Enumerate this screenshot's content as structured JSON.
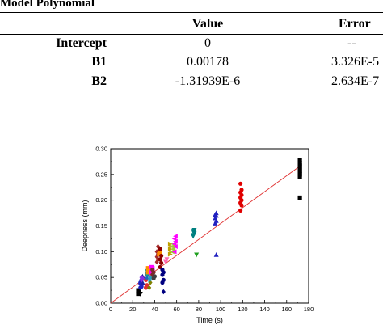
{
  "table": {
    "title": "Model Polynomial",
    "headers": {
      "value": "Value",
      "error": "Error"
    },
    "rows": [
      {
        "label": "Intercept",
        "value": "0",
        "error": "--"
      },
      {
        "label": "B1",
        "value": "0.00178",
        "error": "3.326E-5"
      },
      {
        "label": "B2",
        "value": "-1.31939E-6",
        "error": "2.634E-7"
      }
    ]
  },
  "chart_data": {
    "type": "scatter",
    "xlabel": "Time (s)",
    "ylabel": "Deepness (mm)",
    "xlim": [
      0,
      180
    ],
    "ylim": [
      0,
      0.3
    ],
    "xticks": [
      0,
      20,
      40,
      60,
      80,
      100,
      120,
      140,
      160,
      180
    ],
    "yticks": [
      0.0,
      0.05,
      0.1,
      0.15,
      0.2,
      0.25,
      0.3
    ],
    "ytick_labels": [
      "0.00",
      "0.05",
      "0.10",
      "0.15",
      "0.20",
      "0.25",
      "0.30"
    ],
    "fit_line": {
      "color": "#e03030",
      "x": [
        0,
        172
      ],
      "y": [
        0,
        0.266
      ]
    },
    "series": [
      {
        "marker": "square",
        "color": "#000000",
        "x": [
          25,
          26,
          25
        ],
        "y": [
          0.018,
          0.022,
          0.025
        ]
      },
      {
        "marker": "circle",
        "color": "#2020c0",
        "x": [
          27,
          28,
          27,
          28,
          27,
          28
        ],
        "y": [
          0.03,
          0.035,
          0.04,
          0.045,
          0.038,
          0.032
        ]
      },
      {
        "marker": "triangle-up",
        "color": "#2020a0",
        "x": [
          29,
          30,
          29
        ],
        "y": [
          0.04,
          0.048,
          0.052
        ]
      },
      {
        "marker": "triangle-down",
        "color": "#000000",
        "x": [
          27
        ],
        "y": [
          0.018
        ]
      },
      {
        "marker": "diamond",
        "color": "#8a2be2",
        "x": [
          28,
          29,
          28
        ],
        "y": [
          0.045,
          0.048,
          0.05
        ]
      },
      {
        "marker": "circle",
        "color": "#e03030",
        "x": [
          32,
          33,
          32,
          33
        ],
        "y": [
          0.03,
          0.035,
          0.045,
          0.055
        ]
      },
      {
        "marker": "triangle-up",
        "color": "#2060c0",
        "x": [
          33,
          34,
          33
        ],
        "y": [
          0.05,
          0.055,
          0.06
        ]
      },
      {
        "marker": "triangle-down",
        "color": "#00a0a0",
        "x": [
          33,
          34,
          33
        ],
        "y": [
          0.055,
          0.06,
          0.062
        ]
      },
      {
        "marker": "square",
        "color": "#ff8c00",
        "x": [
          34,
          35,
          34
        ],
        "y": [
          0.06,
          0.065,
          0.068
        ]
      },
      {
        "marker": "diamond",
        "color": "#808000",
        "x": [
          35,
          36
        ],
        "y": [
          0.03,
          0.04
        ]
      },
      {
        "marker": "square",
        "color": "#ff00ff",
        "x": [
          37,
          38,
          37,
          38
        ],
        "y": [
          0.06,
          0.065,
          0.07,
          0.068
        ]
      },
      {
        "marker": "triangle-right",
        "color": "#20a0c0",
        "x": [
          36,
          37
        ],
        "y": [
          0.045,
          0.05
        ]
      },
      {
        "marker": "circle",
        "color": "#7a2a2a",
        "x": [
          38,
          39,
          38
        ],
        "y": [
          0.055,
          0.06,
          0.065
        ]
      },
      {
        "marker": "circle",
        "color": "#404040",
        "x": [
          39,
          40
        ],
        "y": [
          0.048,
          0.052
        ]
      },
      {
        "marker": "diamond",
        "color": "#a52a2a",
        "x": [
          42,
          43,
          42,
          43,
          42,
          43
        ],
        "y": [
          0.08,
          0.085,
          0.09,
          0.095,
          0.1,
          0.11
        ]
      },
      {
        "marker": "square",
        "color": "#ff8c00",
        "x": [
          44,
          45
        ],
        "y": [
          0.095,
          0.1
        ]
      },
      {
        "marker": "circle",
        "color": "#8b0000",
        "x": [
          45,
          46,
          45,
          46,
          45
        ],
        "y": [
          0.07,
          0.078,
          0.085,
          0.092,
          0.105
        ]
      },
      {
        "marker": "circle",
        "color": "#000080",
        "x": [
          47,
          48,
          47,
          48,
          47
        ],
        "y": [
          0.04,
          0.045,
          0.055,
          0.06,
          0.065
        ]
      },
      {
        "marker": "diamond",
        "color": "#000080",
        "x": [
          48
        ],
        "y": [
          0.022
        ]
      },
      {
        "marker": "triangle-down",
        "color": "#ff69b4",
        "x": [
          50,
          51
        ],
        "y": [
          0.08,
          0.085
        ]
      },
      {
        "marker": "triangle-right",
        "color": "#c0a000",
        "x": [
          54,
          55,
          54,
          55,
          54
        ],
        "y": [
          0.095,
          0.1,
          0.105,
          0.11,
          0.115
        ]
      },
      {
        "marker": "triangle-left",
        "color": "#9acd32",
        "x": [
          56,
          57,
          56,
          57
        ],
        "y": [
          0.1,
          0.105,
          0.11,
          0.115
        ]
      },
      {
        "marker": "triangle-left",
        "color": "#ff00ff",
        "x": [
          58,
          59,
          58,
          59,
          58,
          59
        ],
        "y": [
          0.1,
          0.11,
          0.115,
          0.12,
          0.125,
          0.13
        ]
      },
      {
        "marker": "triangle-down",
        "color": "#008080",
        "x": [
          75,
          76,
          75,
          76,
          75,
          76
        ],
        "y": [
          0.13,
          0.135,
          0.14,
          0.138,
          0.132,
          0.142
        ]
      },
      {
        "marker": "triangle-down",
        "color": "#20a020",
        "x": [
          78
        ],
        "y": [
          0.094
        ]
      },
      {
        "marker": "triangle-up",
        "color": "#2020c0",
        "x": [
          95,
          96,
          95,
          96,
          95,
          96
        ],
        "y": [
          0.155,
          0.16,
          0.165,
          0.17,
          0.172,
          0.175
        ]
      },
      {
        "marker": "triangle-up",
        "color": "#2020c0",
        "x": [
          96
        ],
        "y": [
          0.094
        ]
      },
      {
        "marker": "circle",
        "color": "#e00000",
        "x": [
          118,
          119,
          118,
          119,
          118,
          119,
          118,
          119,
          118
        ],
        "y": [
          0.18,
          0.19,
          0.195,
          0.2,
          0.205,
          0.21,
          0.215,
          0.22,
          0.232
        ]
      },
      {
        "marker": "square",
        "color": "#000000",
        "x": [
          172,
          172,
          172,
          172,
          172,
          172,
          172,
          172,
          172,
          172
        ],
        "y": [
          0.205,
          0.245,
          0.25,
          0.253,
          0.257,
          0.26,
          0.265,
          0.268,
          0.272,
          0.278
        ]
      }
    ]
  }
}
